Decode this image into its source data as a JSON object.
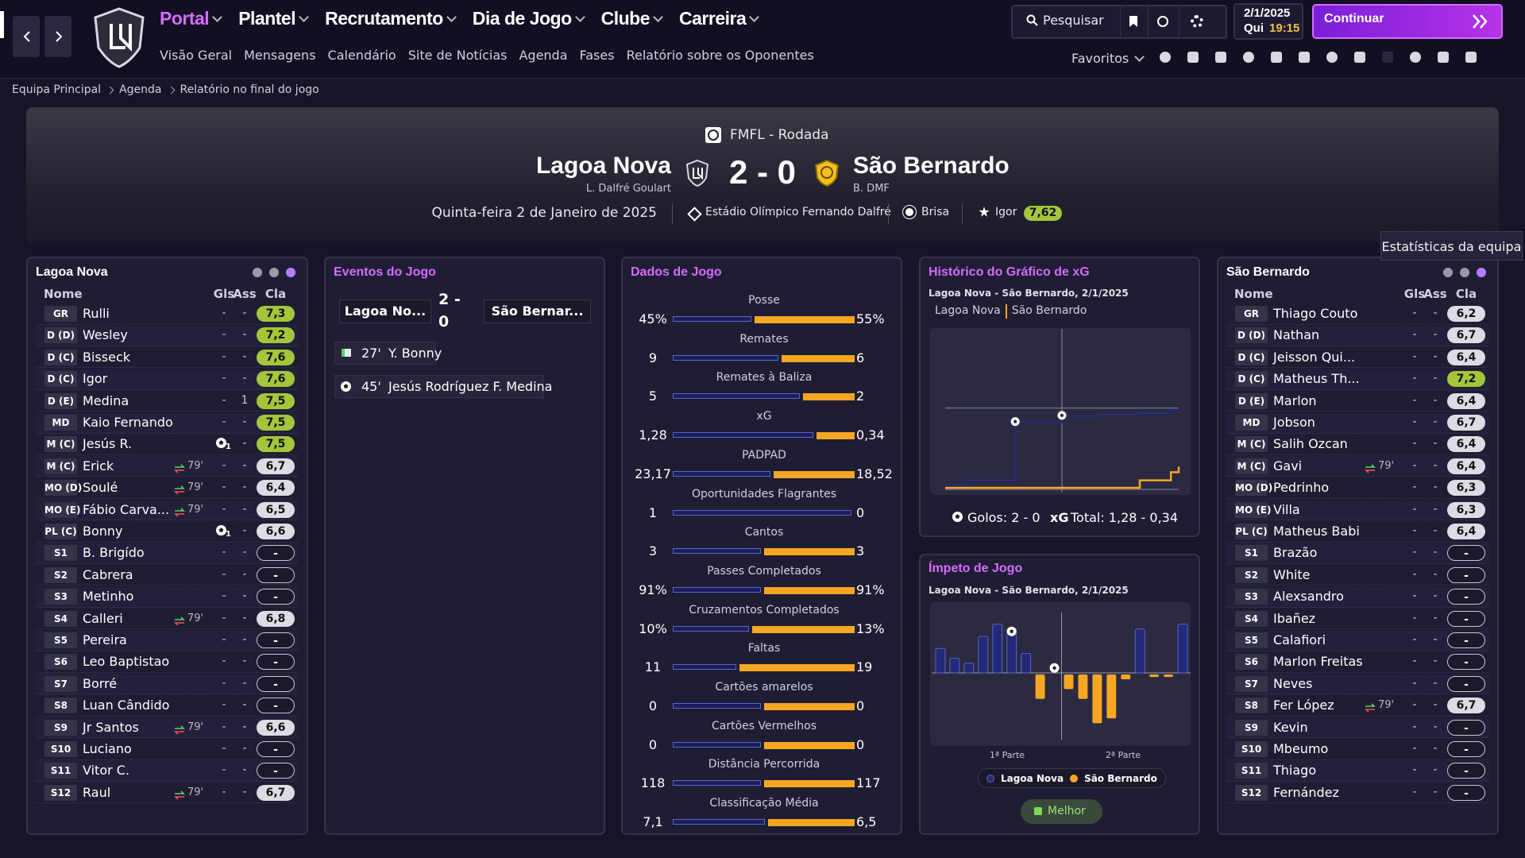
{
  "nav": {
    "menus": [
      "Portal",
      "Plantel",
      "Recrutamento",
      "Dia de Jogo",
      "Clube",
      "Carreira"
    ],
    "submenu": [
      "Visão Geral",
      "Mensagens",
      "Calendário",
      "Site de Notícias",
      "Agenda",
      "Fases",
      "Relatório sobre os Oponentes"
    ],
    "search": "Pesquisar",
    "date": "2/1/2025",
    "weekday": "Qui",
    "time": "19:15",
    "continue": "Continuar",
    "favorites": "Favoritos"
  },
  "breadcrumb": [
    "Equipa Principal",
    "Agenda",
    "Relatório no final do jogo"
  ],
  "match": {
    "competition": "FMFL - Rodada",
    "home": "Lagoa Nova",
    "home_manager": "L. Dalfré Goulart",
    "score": "2 - 0",
    "away": "São Bernardo",
    "away_manager": "B. DMF",
    "date": "Quinta-feira 2 de Janeiro de 2025",
    "stadium": "Estádio Olímpico Fernando Dalfré",
    "weather": "Brisa",
    "player_of_match": "Igor",
    "player_of_match_rating": "7,62"
  },
  "tooltip": "Estatísticas da equipa",
  "home_lineup": {
    "title": "Lagoa Nova",
    "columns": [
      "Nome",
      "Gls",
      "Ass",
      "Cla"
    ],
    "rows": [
      {
        "pos": "GR",
        "name": "Rulli",
        "gls": "-",
        "ass": "-",
        "rating": "7,3"
      },
      {
        "pos": "D (D)",
        "name": "Wesley",
        "gls": "-",
        "ass": "-",
        "rating": "7,2"
      },
      {
        "pos": "D (C)",
        "name": "Bisseck",
        "gls": "-",
        "ass": "-",
        "rating": "7,6"
      },
      {
        "pos": "D (C)",
        "name": "Igor",
        "gls": "-",
        "ass": "-",
        "rating": "7,6"
      },
      {
        "pos": "D (E)",
        "name": "Medina",
        "gls": "-",
        "ass": "1",
        "rating": "7,5"
      },
      {
        "pos": "MD",
        "name": "Kaio Fernando",
        "gls": "-",
        "ass": "-",
        "rating": "7,5"
      },
      {
        "pos": "M (C)",
        "name": "Jesús R.",
        "gls": "1",
        "ass": "-",
        "rating": "7,5"
      },
      {
        "pos": "M (C)",
        "name": "Erick",
        "sub": "79'",
        "gls": "-",
        "ass": "-",
        "rating": "6,7"
      },
      {
        "pos": "MO (D)",
        "name": "Soulé",
        "sub": "79'",
        "gls": "-",
        "ass": "-",
        "rating": "6,4"
      },
      {
        "pos": "MO (E)",
        "name": "Fábio Carva...",
        "sub": "79'",
        "gls": "-",
        "ass": "-",
        "rating": "6,5"
      },
      {
        "pos": "PL (C)",
        "name": "Bonny",
        "gls": "1",
        "ass": "-",
        "rating": "6,6"
      },
      {
        "pos": "S1",
        "name": "B. Brigído",
        "gls": "-",
        "ass": "-",
        "rating": "-"
      },
      {
        "pos": "S2",
        "name": "Cabrera",
        "gls": "-",
        "ass": "-",
        "rating": "-"
      },
      {
        "pos": "S3",
        "name": "Metinho",
        "gls": "-",
        "ass": "-",
        "rating": "-"
      },
      {
        "pos": "S4",
        "name": "Calleri",
        "sub": "79'",
        "gls": "-",
        "ass": "-",
        "rating": "6,8"
      },
      {
        "pos": "S5",
        "name": "Pereira",
        "gls": "-",
        "ass": "-",
        "rating": "-"
      },
      {
        "pos": "S6",
        "name": "Leo Baptistao",
        "gls": "-",
        "ass": "-",
        "rating": "-"
      },
      {
        "pos": "S7",
        "name": "Borré",
        "gls": "-",
        "ass": "-",
        "rating": "-"
      },
      {
        "pos": "S8",
        "name": "Luan Cândido",
        "gls": "-",
        "ass": "-",
        "rating": "-"
      },
      {
        "pos": "S9",
        "name": "Jr Santos",
        "sub": "79'",
        "gls": "-",
        "ass": "-",
        "rating": "6,6"
      },
      {
        "pos": "S10",
        "name": "Luciano",
        "gls": "-",
        "ass": "-",
        "rating": "-"
      },
      {
        "pos": "S11",
        "name": "Vitor C.",
        "gls": "-",
        "ass": "-",
        "rating": "-"
      },
      {
        "pos": "S12",
        "name": "Raul",
        "sub": "79'",
        "gls": "-",
        "ass": "-",
        "rating": "6,7"
      }
    ]
  },
  "away_lineup": {
    "title": "São Bernardo",
    "columns": [
      "Nome",
      "Gls",
      "Ass",
      "Cla"
    ],
    "rows": [
      {
        "pos": "GR",
        "name": "Thiago Couto",
        "gls": "-",
        "ass": "-",
        "rating": "6,2"
      },
      {
        "pos": "D (D)",
        "name": "Nathan",
        "gls": "-",
        "ass": "-",
        "rating": "6,7"
      },
      {
        "pos": "D (C)",
        "name": "Jeisson Qui...",
        "gls": "-",
        "ass": "-",
        "rating": "6,4"
      },
      {
        "pos": "D (C)",
        "name": "Matheus Th...",
        "gls": "-",
        "ass": "-",
        "rating": "7,2"
      },
      {
        "pos": "D (E)",
        "name": "Marlon",
        "gls": "-",
        "ass": "-",
        "rating": "6,4"
      },
      {
        "pos": "MD",
        "name": "Jobson",
        "gls": "-",
        "ass": "-",
        "rating": "6,7"
      },
      {
        "pos": "M (C)",
        "name": "Salih Ozcan",
        "gls": "-",
        "ass": "-",
        "rating": "6,4"
      },
      {
        "pos": "M (C)",
        "name": "Gavi",
        "sub": "79'",
        "gls": "-",
        "ass": "-",
        "rating": "6,4"
      },
      {
        "pos": "MO (D)",
        "name": "Pedrinho",
        "gls": "-",
        "ass": "-",
        "rating": "6,3"
      },
      {
        "pos": "MO (E)",
        "name": "Villa",
        "gls": "-",
        "ass": "-",
        "rating": "6,3"
      },
      {
        "pos": "PL (C)",
        "name": "Matheus Babi",
        "gls": "-",
        "ass": "-",
        "rating": "6,4"
      },
      {
        "pos": "S1",
        "name": "Brazão",
        "gls": "-",
        "ass": "-",
        "rating": "-"
      },
      {
        "pos": "S2",
        "name": "White",
        "gls": "-",
        "ass": "-",
        "rating": "-"
      },
      {
        "pos": "S3",
        "name": "Alexsandro",
        "gls": "-",
        "ass": "-",
        "rating": "-"
      },
      {
        "pos": "S4",
        "name": "Ibañez",
        "gls": "-",
        "ass": "-",
        "rating": "-"
      },
      {
        "pos": "S5",
        "name": "Calafiori",
        "gls": "-",
        "ass": "-",
        "rating": "-"
      },
      {
        "pos": "S6",
        "name": "Marlon Freitas",
        "gls": "-",
        "ass": "-",
        "rating": "-"
      },
      {
        "pos": "S7",
        "name": "Neves",
        "gls": "-",
        "ass": "-",
        "rating": "-"
      },
      {
        "pos": "S8",
        "name": "Fer López",
        "sub": "79'",
        "gls": "-",
        "ass": "-",
        "rating": "6,7"
      },
      {
        "pos": "S9",
        "name": "Kevin",
        "gls": "-",
        "ass": "-",
        "rating": "-"
      },
      {
        "pos": "S10",
        "name": "Mbeumo",
        "gls": "-",
        "ass": "-",
        "rating": "-"
      },
      {
        "pos": "S11",
        "name": "Thiago",
        "gls": "-",
        "ass": "-",
        "rating": "-"
      },
      {
        "pos": "S12",
        "name": "Fernández",
        "gls": "-",
        "ass": "-",
        "rating": "-"
      }
    ]
  },
  "events": {
    "title": "Eventos do Jogo",
    "tabs": [
      "Lagoa No...",
      "2 - 0",
      "São Bernar..."
    ],
    "items": [
      {
        "minute": "27'",
        "text": "Y. Bonny"
      },
      {
        "minute": "45'",
        "text": "Jesús Rodríguez F. Medina"
      }
    ]
  },
  "stats": {
    "title": "Dados de Jogo",
    "items": [
      {
        "name": "Posse",
        "values": [
          45,
          55
        ],
        "value_labels": [
          "45%",
          "55%"
        ]
      },
      {
        "name": "Remates",
        "values": [
          9,
          6
        ]
      },
      {
        "name": "Remates à Baliza",
        "values": [
          5,
          2
        ]
      },
      {
        "name": "xG",
        "values": [
          1.28,
          0.34
        ],
        "value_labels": [
          "1,28",
          "0,34"
        ]
      },
      {
        "name": "PADPAD",
        "values": [
          23.17,
          18.52
        ],
        "value_labels": [
          "23,17",
          "18,52"
        ]
      },
      {
        "name": "Oportunidades Flagrantes",
        "values": [
          1,
          0
        ]
      },
      {
        "name": "Cantos",
        "values": [
          3,
          3
        ]
      },
      {
        "name": "Passes Completados",
        "values": [
          91,
          91
        ],
        "value_labels": [
          "91%",
          "91%"
        ]
      },
      {
        "name": "Cruzamentos Completados",
        "values": [
          10,
          13
        ],
        "value_labels": [
          "10%",
          "13%"
        ]
      },
      {
        "name": "Faltas",
        "values": [
          11,
          19
        ]
      },
      {
        "name": "Cartões amarelos",
        "values": [
          0,
          0
        ]
      },
      {
        "name": "Cartões Vermelhos",
        "values": [
          0,
          0
        ]
      },
      {
        "name": "Distância Percorrida",
        "values": [
          118,
          117
        ]
      },
      {
        "name": "Classificação Média",
        "values": [
          7.1,
          6.5
        ],
        "value_labels": [
          "7,1",
          "6,5"
        ]
      }
    ]
  },
  "chart_data": [
    {
      "type": "line",
      "title": "Histórico do Gráfico de xG",
      "subtitle": "Lagoa Nova - São Bernardo, 2/1/2025",
      "x": [
        0,
        8,
        27,
        45,
        60,
        75,
        87,
        90
      ],
      "xlim": [
        0,
        90
      ],
      "ylim": [
        0,
        2.5
      ],
      "series": [
        {
          "name": "Lagoa Nova",
          "color": "#232a78",
          "values": [
            0.05,
            0.12,
            1.05,
            1.15,
            1.18,
            1.2,
            1.24,
            1.28
          ]
        },
        {
          "name": "São Bernardo",
          "color": "#f5a623",
          "values": [
            0,
            0,
            0,
            0,
            0,
            0.12,
            0.25,
            0.34
          ]
        }
      ],
      "goal_minutes": [
        27,
        45
      ],
      "footer_goals": "Golos: 2 - 0",
      "footer_xg": "xG",
      "footer_total": "Total: 1,28 - 0,34"
    },
    {
      "type": "bar",
      "title": "Ímpeto de Jogo",
      "subtitle": "Lagoa Nova - São Bernardo, 2/1/2025",
      "halves": [
        "1ª Parte",
        "2ª Parte"
      ],
      "ylim": [
        -1.45,
        1.45
      ],
      "series": [
        {
          "name": "Lagoa Nova",
          "color": "#232a78",
          "values": [
            0.5,
            0.3,
            0.2,
            0.75,
            1.0,
            0.9,
            0.4,
            0,
            0,
            0,
            0,
            0,
            0,
            0,
            0.9,
            0,
            0,
            1.0
          ]
        },
        {
          "name": "São Bernardo",
          "color": "#f5a623",
          "values": [
            0,
            0,
            0,
            0,
            0,
            0,
            0,
            0.5,
            0,
            0.3,
            0.5,
            1.0,
            0.9,
            0.1,
            0,
            0.05,
            0.05,
            0
          ]
        }
      ],
      "goal_slots": [
        5,
        8
      ],
      "button": "Melhor"
    }
  ]
}
